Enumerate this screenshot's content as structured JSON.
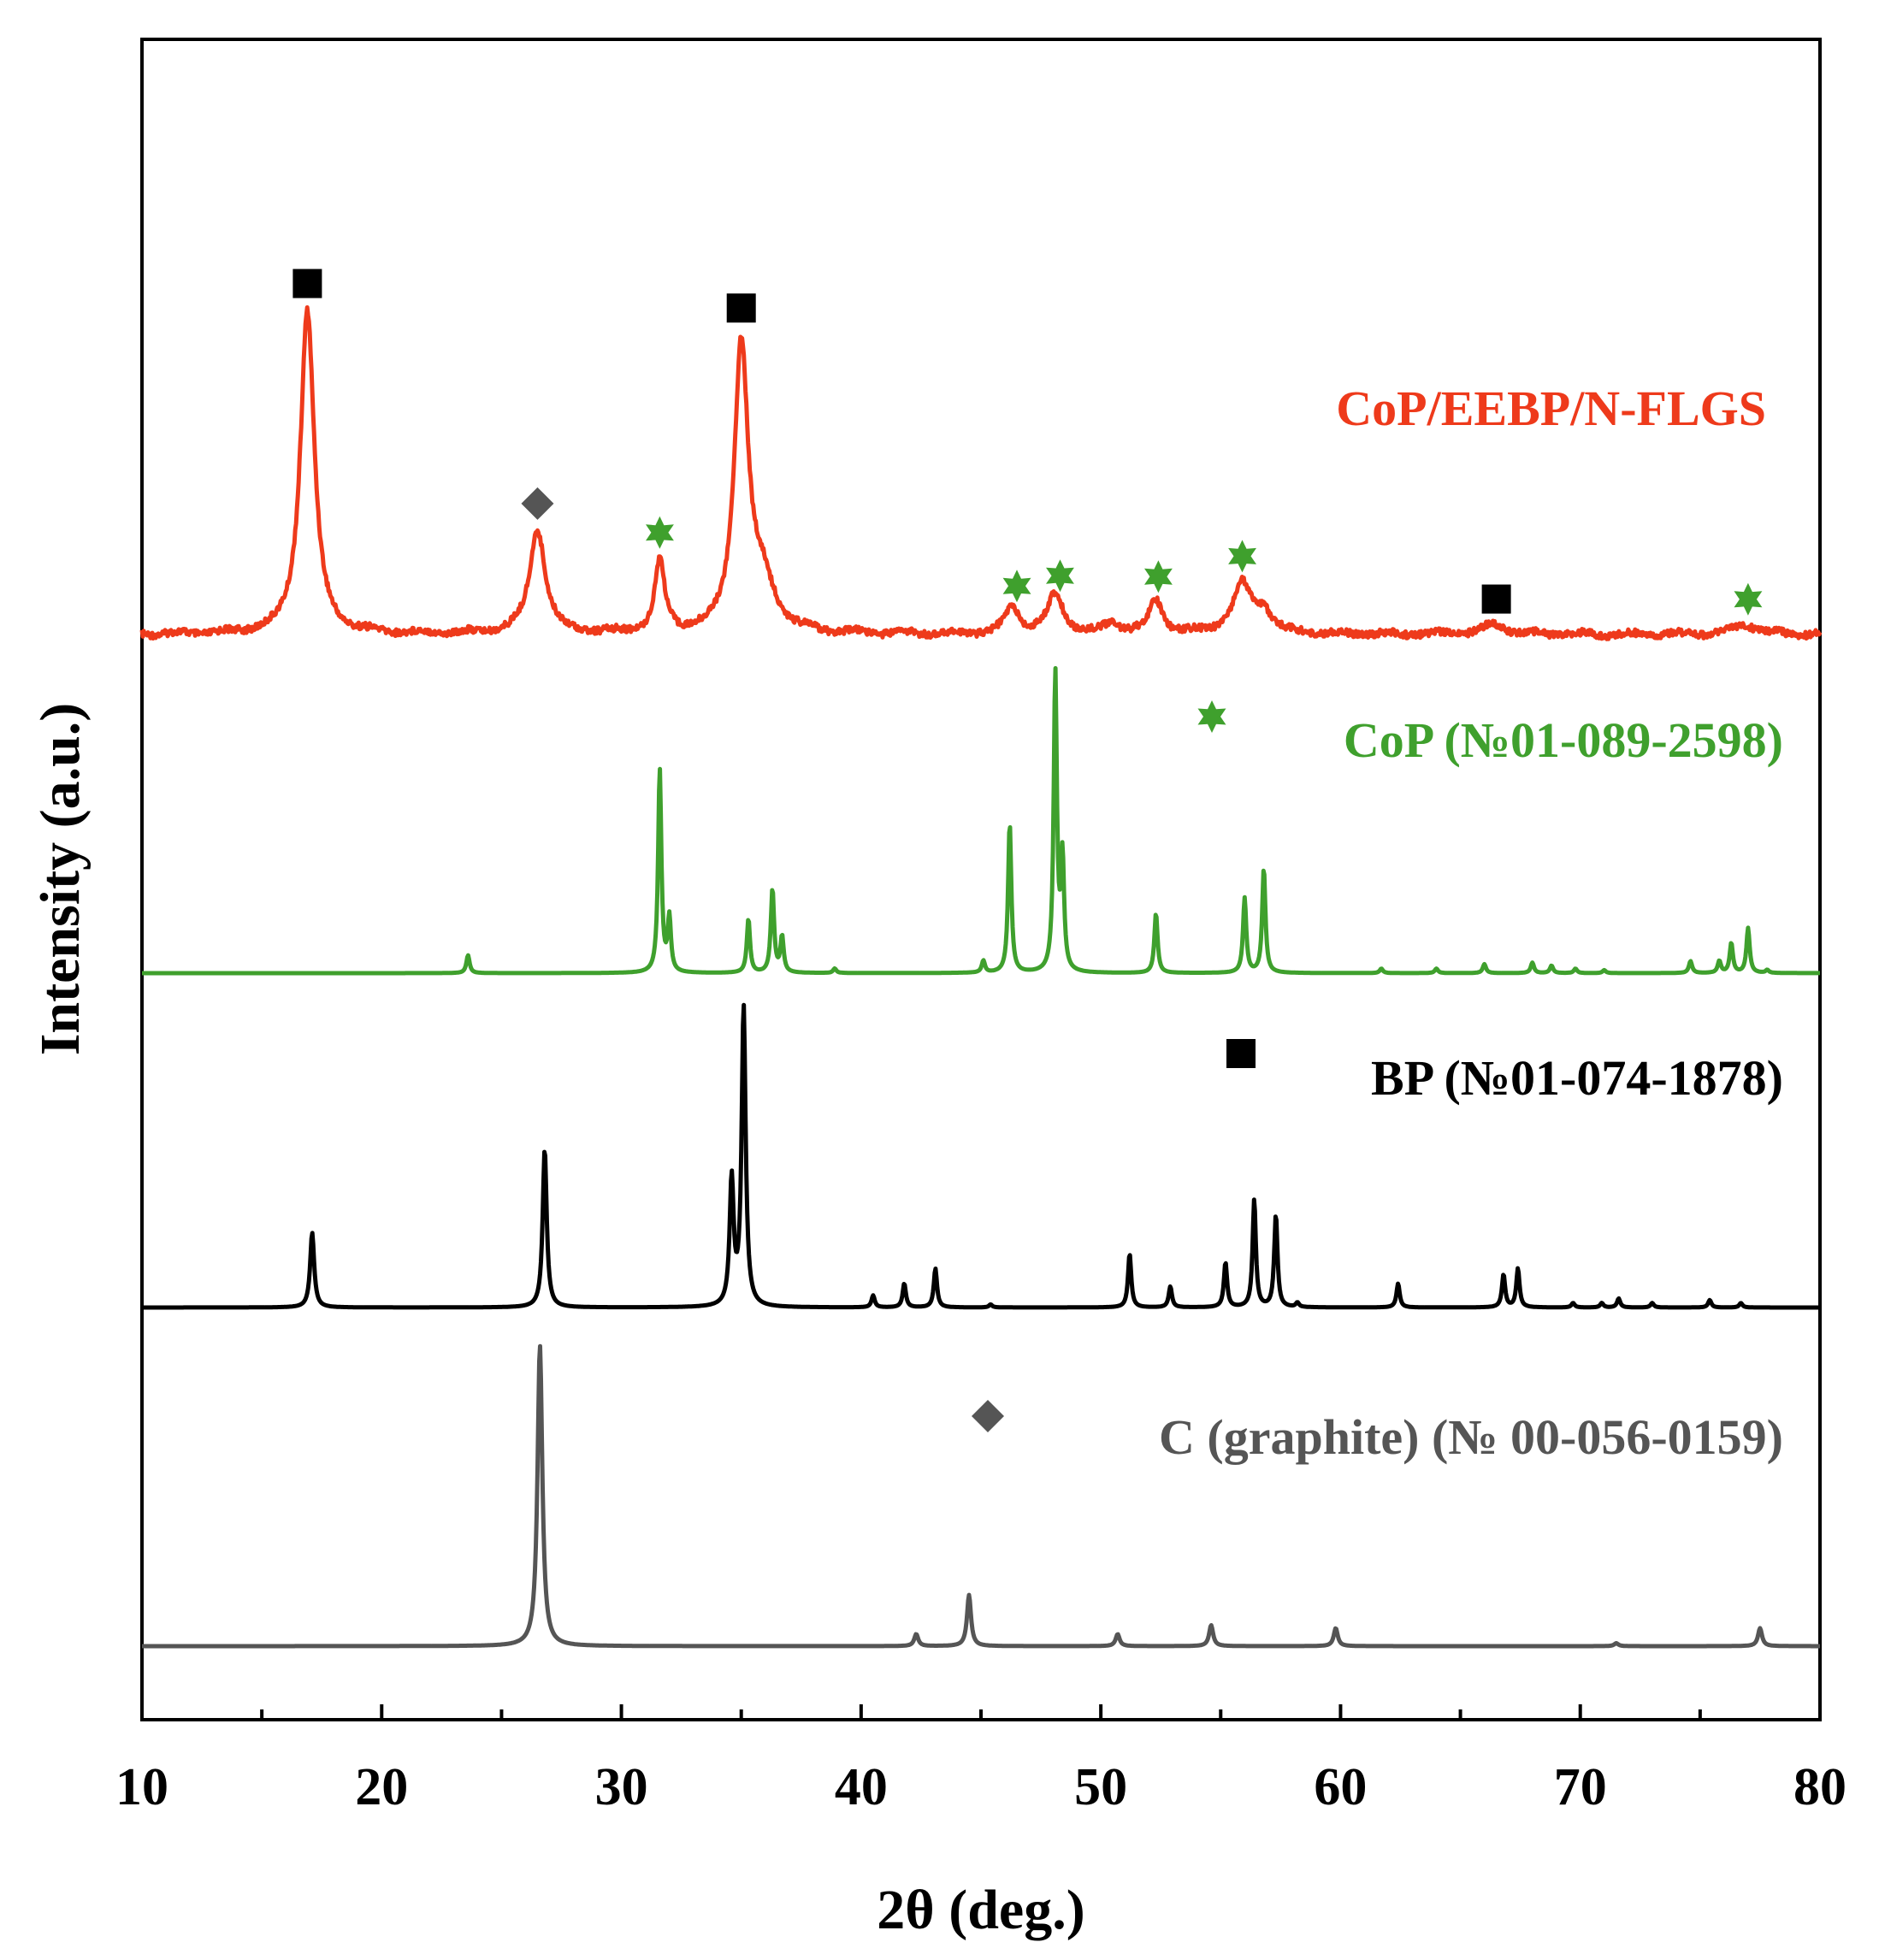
{
  "chart_data": {
    "type": "line",
    "xlabel": "2θ (deg.)",
    "ylabel": "Intensity (a.u.)",
    "xlim": [
      10,
      80
    ],
    "x_ticks": [
      10,
      20,
      30,
      40,
      50,
      60,
      70,
      80
    ],
    "grid": false,
    "legend": "inline labels at right of each trace",
    "colors": {
      "sample": "#ee3a1b",
      "cop": "#3fa02d",
      "bp": "#000000",
      "graphite": "#555555"
    },
    "series": [
      {
        "name": "CoP/EEBP/N-FLGS",
        "color": "#ee3a1b",
        "baseline": 0,
        "peaks": [
          {
            "x": 16.9,
            "y": 100,
            "w": 0.35
          },
          {
            "x": 26.5,
            "y": 32,
            "w": 0.4
          },
          {
            "x": 31.6,
            "y": 22,
            "w": 0.25
          },
          {
            "x": 35.0,
            "y": 88,
            "w": 0.35
          },
          {
            "x": 35.9,
            "y": 14,
            "w": 0.6
          },
          {
            "x": 46.3,
            "y": 8,
            "w": 0.35
          },
          {
            "x": 48.1,
            "y": 12,
            "w": 0.4
          },
          {
            "x": 50.5,
            "y": 3,
            "w": 0.4
          },
          {
            "x": 52.3,
            "y": 10,
            "w": 0.35
          },
          {
            "x": 55.9,
            "y": 15,
            "w": 0.5
          },
          {
            "x": 56.8,
            "y": 6,
            "w": 0.4
          },
          {
            "x": 66.4,
            "y": 3,
            "w": 0.6
          },
          {
            "x": 76.9,
            "y": 3,
            "w": 0.6
          }
        ],
        "markers": [
          {
            "x": 16.9,
            "symbol": "square"
          },
          {
            "x": 26.5,
            "symbol": "diamond"
          },
          {
            "x": 31.6,
            "symbol": "star"
          },
          {
            "x": 35.0,
            "symbol": "square"
          },
          {
            "x": 46.5,
            "symbol": "star"
          },
          {
            "x": 48.3,
            "symbol": "star"
          },
          {
            "x": 52.4,
            "symbol": "star"
          },
          {
            "x": 55.9,
            "symbol": "star"
          },
          {
            "x": 66.5,
            "symbol": "square"
          },
          {
            "x": 77.0,
            "symbol": "star"
          }
        ]
      },
      {
        "name": "CoP (№01-089-2598)",
        "color": "#3fa02d",
        "baseline": 0,
        "peaks": [
          {
            "x": 23.6,
            "y": 6,
            "w": 0.08
          },
          {
            "x": 31.6,
            "y": 68,
            "w": 0.08
          },
          {
            "x": 32.0,
            "y": 18,
            "w": 0.08
          },
          {
            "x": 35.3,
            "y": 18,
            "w": 0.08
          },
          {
            "x": 36.3,
            "y": 28,
            "w": 0.08
          },
          {
            "x": 36.7,
            "y": 12,
            "w": 0.08
          },
          {
            "x": 38.9,
            "y": 1.5,
            "w": 0.08
          },
          {
            "x": 45.1,
            "y": 4,
            "w": 0.08
          },
          {
            "x": 46.2,
            "y": 50,
            "w": 0.08
          },
          {
            "x": 48.1,
            "y": 100,
            "w": 0.08
          },
          {
            "x": 48.4,
            "y": 37,
            "w": 0.08
          },
          {
            "x": 52.3,
            "y": 20,
            "w": 0.08
          },
          {
            "x": 56.0,
            "y": 25,
            "w": 0.08
          },
          {
            "x": 56.8,
            "y": 35,
            "w": 0.08
          },
          {
            "x": 61.7,
            "y": 1.5,
            "w": 0.08
          },
          {
            "x": 64.0,
            "y": 1.5,
            "w": 0.08
          },
          {
            "x": 66.0,
            "y": 3,
            "w": 0.08
          },
          {
            "x": 68.0,
            "y": 3.5,
            "w": 0.08
          },
          {
            "x": 68.8,
            "y": 2.5,
            "w": 0.08
          },
          {
            "x": 69.8,
            "y": 1.5,
            "w": 0.08
          },
          {
            "x": 71.0,
            "y": 1,
            "w": 0.08
          },
          {
            "x": 74.6,
            "y": 4,
            "w": 0.08
          },
          {
            "x": 75.8,
            "y": 4,
            "w": 0.08
          },
          {
            "x": 76.3,
            "y": 10,
            "w": 0.08
          },
          {
            "x": 77.0,
            "y": 15,
            "w": 0.08
          },
          {
            "x": 77.8,
            "y": 1,
            "w": 0.08
          }
        ],
        "markers": []
      },
      {
        "name": "BP (№01-074-1878)",
        "color": "#000000",
        "baseline": 0,
        "peaks": [
          {
            "x": 17.1,
            "y": 25,
            "w": 0.1
          },
          {
            "x": 26.8,
            "y": 53,
            "w": 0.1
          },
          {
            "x": 34.6,
            "y": 42,
            "w": 0.1
          },
          {
            "x": 35.1,
            "y": 100,
            "w": 0.1
          },
          {
            "x": 40.5,
            "y": 4,
            "w": 0.08
          },
          {
            "x": 41.8,
            "y": 8,
            "w": 0.08
          },
          {
            "x": 43.1,
            "y": 13,
            "w": 0.08
          },
          {
            "x": 45.4,
            "y": 1,
            "w": 0.08
          },
          {
            "x": 51.2,
            "y": 18,
            "w": 0.08
          },
          {
            "x": 52.9,
            "y": 7,
            "w": 0.08
          },
          {
            "x": 55.2,
            "y": 15,
            "w": 0.08
          },
          {
            "x": 56.4,
            "y": 36,
            "w": 0.08
          },
          {
            "x": 57.3,
            "y": 31,
            "w": 0.08
          },
          {
            "x": 58.2,
            "y": 1.5,
            "w": 0.08
          },
          {
            "x": 62.4,
            "y": 8,
            "w": 0.08
          },
          {
            "x": 66.8,
            "y": 11,
            "w": 0.08
          },
          {
            "x": 67.4,
            "y": 13,
            "w": 0.08
          },
          {
            "x": 69.7,
            "y": 1.5,
            "w": 0.08
          },
          {
            "x": 70.9,
            "y": 1.5,
            "w": 0.08
          },
          {
            "x": 71.6,
            "y": 3,
            "w": 0.08
          },
          {
            "x": 73.0,
            "y": 1.5,
            "w": 0.08
          },
          {
            "x": 75.4,
            "y": 2.5,
            "w": 0.08
          },
          {
            "x": 76.7,
            "y": 1.5,
            "w": 0.08
          }
        ],
        "markers": []
      },
      {
        "name": "C (graphite) (№ 00-056-0159)",
        "color": "#555555",
        "baseline": 0,
        "peaks": [
          {
            "x": 26.6,
            "y": 100,
            "w": 0.12
          },
          {
            "x": 42.3,
            "y": 4,
            "w": 0.1
          },
          {
            "x": 44.5,
            "y": 17,
            "w": 0.1
          },
          {
            "x": 50.7,
            "y": 4,
            "w": 0.1
          },
          {
            "x": 54.6,
            "y": 7,
            "w": 0.1
          },
          {
            "x": 59.8,
            "y": 6,
            "w": 0.1
          },
          {
            "x": 71.5,
            "y": 1,
            "w": 0.1
          },
          {
            "x": 77.5,
            "y": 6,
            "w": 0.1
          }
        ],
        "markers": []
      }
    ]
  }
}
